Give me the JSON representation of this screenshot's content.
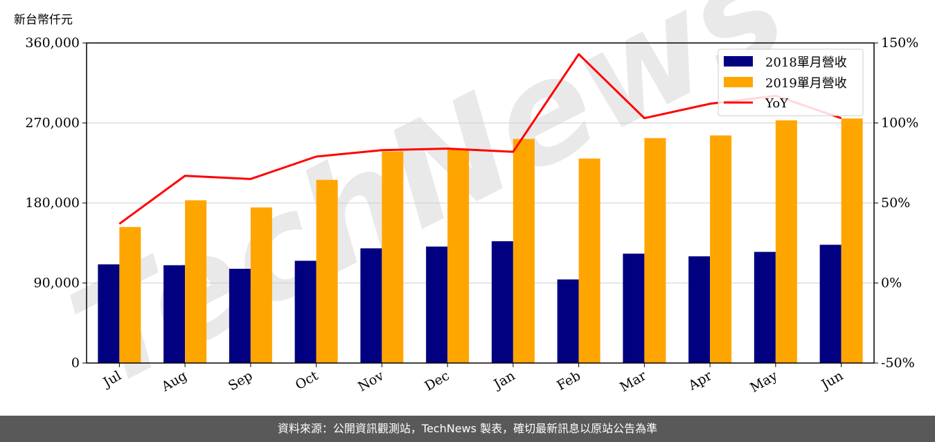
{
  "unit_label": "新台幣仟元",
  "footer_text": "資料來源：公開資訊觀測站，TechNews 製表，確切最新訊息以原站公告為準",
  "watermark": "TechNews",
  "chart_data": {
    "type": "bar",
    "categories": [
      "Jul",
      "Aug",
      "Sep",
      "Oct",
      "Nov",
      "Dec",
      "Jan",
      "Feb",
      "Mar",
      "Apr",
      "May",
      "Jun"
    ],
    "series": [
      {
        "name": "2018單月營收",
        "type": "bar",
        "axis": "left",
        "color": "#000080",
        "values": [
          111000,
          110000,
          106000,
          115000,
          129000,
          131000,
          137000,
          94000,
          123000,
          120000,
          125000,
          133000
        ]
      },
      {
        "name": "2019單月營收",
        "type": "bar",
        "axis": "left",
        "color": "#FFA500",
        "values": [
          153000,
          183000,
          175000,
          206000,
          238000,
          241000,
          252000,
          230000,
          253000,
          256000,
          273000,
          275000
        ]
      },
      {
        "name": "YoY",
        "type": "line",
        "axis": "right",
        "color": "#FF0000",
        "values": [
          37,
          67,
          65,
          79,
          83,
          84,
          82,
          143,
          103,
          112,
          117,
          103
        ]
      }
    ],
    "ylim_left": [
      0,
      360000
    ],
    "yticks_left": [
      0,
      90000,
      180000,
      270000,
      360000
    ],
    "ytick_labels_left": [
      "0",
      "90,000",
      "180,000",
      "270,000",
      "360,000"
    ],
    "ylim_right": [
      -50,
      150
    ],
    "yticks_right": [
      -50,
      0,
      50,
      100,
      150
    ],
    "ytick_labels_right": [
      "-50%",
      "0%",
      "50%",
      "100%",
      "150%"
    ],
    "grid": "horizontal",
    "legend_position": "top-right"
  }
}
